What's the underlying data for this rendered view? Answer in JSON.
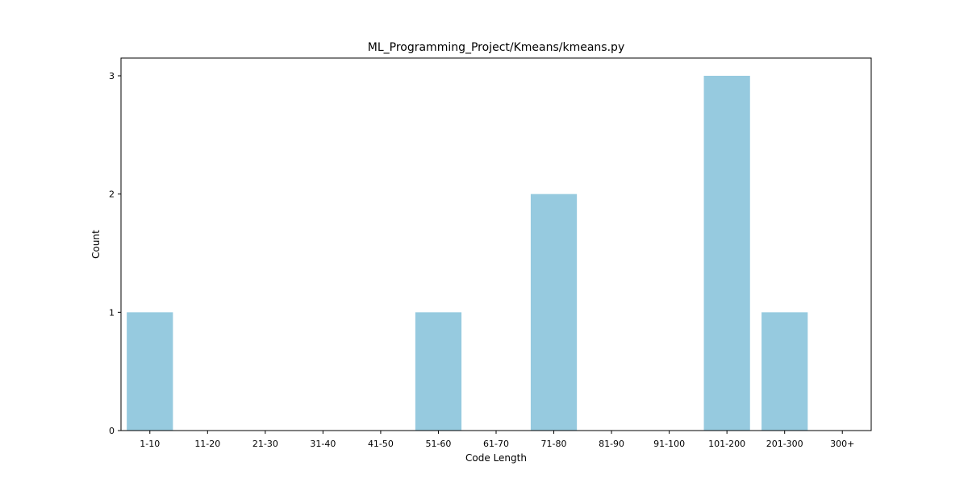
{
  "chart_data": {
    "type": "bar",
    "title": "ML_Programming_Project/Kmeans/kmeans.py",
    "xlabel": "Code Length",
    "ylabel": "Count",
    "categories": [
      "1-10",
      "11-20",
      "21-30",
      "31-40",
      "41-50",
      "51-60",
      "61-70",
      "71-80",
      "81-90",
      "91-100",
      "101-200",
      "201-300",
      "300+"
    ],
    "values": [
      1,
      0,
      0,
      0,
      0,
      1,
      0,
      2,
      0,
      0,
      3,
      1,
      0
    ],
    "ylim": [
      0,
      3.15
    ],
    "yticks": [
      0,
      1,
      2,
      3
    ],
    "grid": false,
    "bar_color": "#96cadf",
    "frame_color": "#000000"
  }
}
